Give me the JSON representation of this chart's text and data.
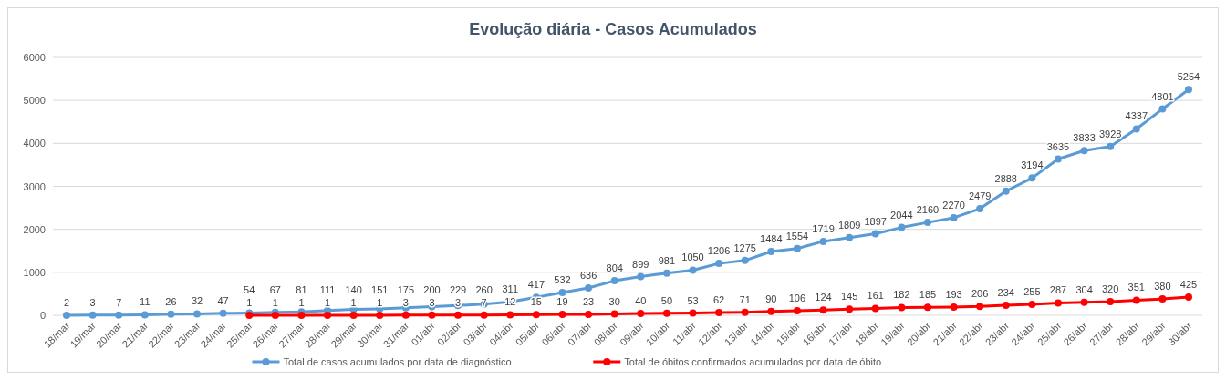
{
  "chart_data": {
    "type": "line",
    "title": "Evolução diária - Casos Acumulados",
    "categories": [
      "18/mar",
      "19/mar",
      "20/mar",
      "21/mar",
      "22/mar",
      "23/mar",
      "24/mar",
      "25/mar",
      "26/mar",
      "27/mar",
      "28/mar",
      "29/mar",
      "30/mar",
      "31/mar",
      "01/abr",
      "02/abr",
      "03/abr",
      "04/abr",
      "05/abr",
      "06/abr",
      "07/abr",
      "08/abr",
      "09/abr",
      "10/abr",
      "11/abr",
      "12/abr",
      "13/abr",
      "14/abr",
      "15/abr",
      "16/abr",
      "17/abr",
      "18/abr",
      "19/abr",
      "20/abr",
      "21/abr",
      "22/abr",
      "23/abr",
      "24/abr",
      "25/abr",
      "26/abr",
      "27/abr",
      "28/abr",
      "29/abr",
      "30/abr"
    ],
    "series": [
      {
        "name": "Total de casos acumulados por data de diagnóstico",
        "color": "#5b9bd5",
        "values": [
          2,
          3,
          7,
          11,
          26,
          32,
          47,
          54,
          67,
          81,
          111,
          140,
          151,
          175,
          200,
          229,
          260,
          311,
          417,
          532,
          636,
          804,
          899,
          981,
          1050,
          1206,
          1275,
          1484,
          1554,
          1719,
          1809,
          1897,
          2044,
          2160,
          2270,
          2479,
          2888,
          3194,
          3635,
          3833,
          3928,
          4337,
          4801,
          5254
        ]
      },
      {
        "name": "Total de óbitos confirmados acumulados por data de óbito",
        "color": "#ff0000",
        "values": [
          null,
          null,
          null,
          null,
          null,
          null,
          null,
          1,
          1,
          1,
          1,
          1,
          1,
          3,
          3,
          3,
          7,
          12,
          15,
          19,
          23,
          30,
          40,
          50,
          53,
          62,
          71,
          90,
          106,
          124,
          145,
          161,
          182,
          185,
          193,
          206,
          234,
          255,
          287,
          304,
          320,
          351,
          380,
          425
        ]
      }
    ],
    "ylim": [
      0,
      6000
    ],
    "yticks": [
      0,
      1000,
      2000,
      3000,
      4000,
      5000,
      6000
    ],
    "grid": "y",
    "legend": "bottom",
    "marker": "circle",
    "line_style": "solid",
    "data_labels": true
  }
}
